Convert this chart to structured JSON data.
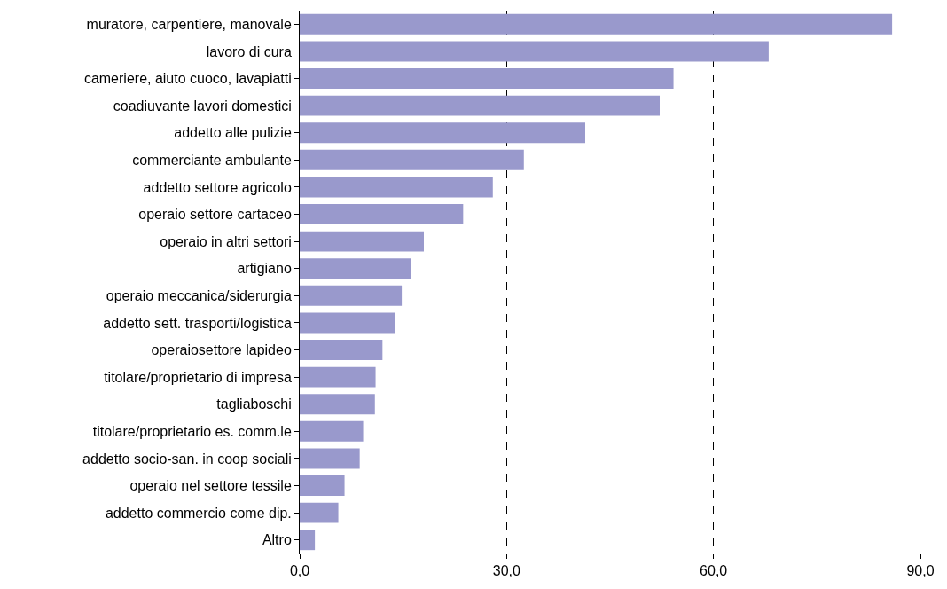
{
  "chart_data": {
    "type": "bar",
    "orientation": "horizontal",
    "categories": [
      "muratore, carpentiere, manovale",
      "lavoro di cura",
      "cameriere, aiuto cuoco, lavapiatti",
      "coadiuvante lavori domestici",
      "addetto alle pulizie",
      "commerciante ambulante",
      "addetto settore agricolo",
      "operaio settore cartaceo",
      "operaio in altri settori",
      "artigiano",
      "operaio meccanica/siderurgia",
      "addetto sett. trasporti/logistica",
      "operaiosettore lapideo",
      "titolare/proprietario di impresa",
      "tagliaboschi",
      "titolare/proprietario es. comm.le",
      "addetto socio-san. in coop sociali",
      "operaio nel settore tessile",
      "addetto commercio come dip.",
      "Altro"
    ],
    "values": [
      85.9,
      68.0,
      54.2,
      52.2,
      41.4,
      32.5,
      28.0,
      23.7,
      18.0,
      16.1,
      14.8,
      13.8,
      12.0,
      11.0,
      10.9,
      9.2,
      8.7,
      6.5,
      5.6,
      2.2
    ],
    "color": "#9999cc",
    "xlim": [
      0,
      90
    ],
    "xticks": [
      {
        "value": 0,
        "label": "0,0"
      },
      {
        "value": 30,
        "label": "30,0"
      },
      {
        "value": 60,
        "label": "60,0"
      },
      {
        "value": 90,
        "label": "90,0"
      }
    ],
    "grid": "x",
    "line_style": "dashed"
  }
}
